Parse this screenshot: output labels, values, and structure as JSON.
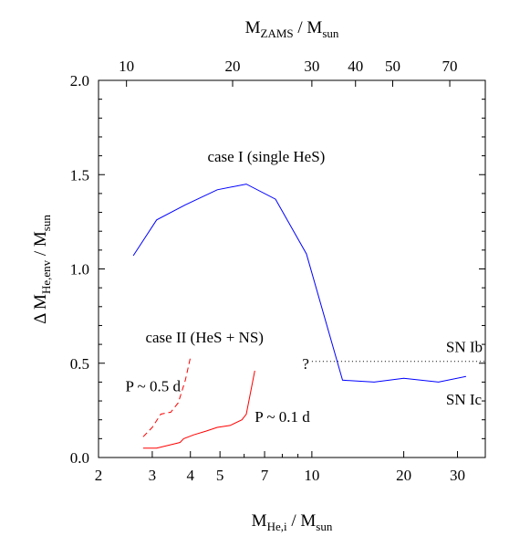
{
  "chart_data": {
    "type": "line",
    "x_scale": "log",
    "xlim": [
      2,
      37
    ],
    "ylim": [
      0,
      2.0
    ],
    "grid": false,
    "y_ticks": [
      {
        "value": 0.0,
        "label": "0.0"
      },
      {
        "value": 0.5,
        "label": "0.5"
      },
      {
        "value": 1.0,
        "label": "1.0"
      },
      {
        "value": 1.5,
        "label": "1.5"
      },
      {
        "value": 2.0,
        "label": "2.0"
      }
    ],
    "x_ticks_bottom": [
      {
        "value": 2,
        "label": "2"
      },
      {
        "value": 3,
        "label": "3"
      },
      {
        "value": 4,
        "label": "4"
      },
      {
        "value": 5,
        "label": "5"
      },
      {
        "value": 7,
        "label": "7"
      },
      {
        "value": 10,
        "label": "10"
      },
      {
        "value": 20,
        "label": "20"
      },
      {
        "value": 30,
        "label": "30"
      }
    ],
    "x_ticks_top": [
      {
        "value": 2.47,
        "label": "10"
      },
      {
        "value": 5.5,
        "label": "20"
      },
      {
        "value": 10.0,
        "label": "30"
      },
      {
        "value": 13.9,
        "label": "40"
      },
      {
        "value": 18.4,
        "label": "50"
      },
      {
        "value": 28.3,
        "label": "70"
      }
    ],
    "xlabel": {
      "main": "M",
      "sub": "He,i",
      "rest": " / M",
      "sub2": "sun"
    },
    "xlabel_top": {
      "main": "M",
      "sub": "ZAMS",
      "rest": " / M",
      "sub2": "sun"
    },
    "ylabel": {
      "main": "Δ M",
      "sub": "He,env",
      "rest": " / M",
      "sub2": "sun"
    },
    "series": [
      {
        "name": "case I (single HeS)",
        "color": "#0000ff",
        "dash": "solid",
        "points": [
          [
            2.6,
            1.07
          ],
          [
            3.1,
            1.26
          ],
          [
            3.85,
            1.34
          ],
          [
            4.9,
            1.42
          ],
          [
            6.1,
            1.45
          ],
          [
            7.6,
            1.37
          ],
          [
            9.6,
            1.08
          ],
          [
            12.6,
            0.41
          ],
          [
            16.0,
            0.4
          ],
          [
            20.0,
            0.42
          ],
          [
            26.0,
            0.4
          ],
          [
            32.0,
            0.43
          ]
        ]
      },
      {
        "name": "P ~ 0.1 d",
        "color": "#ff0000",
        "dash": "solid",
        "points": [
          [
            2.8,
            0.05
          ],
          [
            3.1,
            0.05
          ],
          [
            3.5,
            0.07
          ],
          [
            3.7,
            0.08
          ],
          [
            3.8,
            0.1
          ],
          [
            4.1,
            0.12
          ],
          [
            4.5,
            0.14
          ],
          [
            4.9,
            0.16
          ],
          [
            5.4,
            0.17
          ],
          [
            5.9,
            0.2
          ],
          [
            6.1,
            0.23
          ],
          [
            6.5,
            0.46
          ]
        ]
      },
      {
        "name": "P ~ 0.5 d",
        "color": "#ff0000",
        "dash": "dashed",
        "points": [
          [
            2.8,
            0.11
          ],
          [
            3.0,
            0.16
          ],
          [
            3.2,
            0.23
          ],
          [
            3.45,
            0.24
          ],
          [
            3.65,
            0.29
          ],
          [
            3.85,
            0.41
          ],
          [
            4.0,
            0.53
          ]
        ]
      },
      {
        "name": "",
        "color": "#000000",
        "dash": "dotted",
        "points": [
          [
            10.0,
            0.51
          ],
          [
            37.0,
            0.51
          ]
        ]
      }
    ],
    "annotations": [
      {
        "text": "case I (single HeS)",
        "color": "#0000ff",
        "at": [
          4.55,
          1.57
        ]
      },
      {
        "text": "case II (HeS + NS)",
        "color": "#ff0000",
        "at": [
          2.85,
          0.61
        ]
      },
      {
        "text": "P ~ 0.5 d",
        "color": "#ff0000",
        "at": [
          2.45,
          0.35
        ]
      },
      {
        "text": "P ~ 0.1 d",
        "color": "#ff0000",
        "at": [
          6.5,
          0.19
        ]
      },
      {
        "text": "?",
        "color": "#000000",
        "at": [
          9.3,
          0.47
        ]
      },
      {
        "text": "SN Ib",
        "color": "#000000",
        "at": [
          27.5,
          0.56
        ]
      },
      {
        "text": "SN Ic",
        "color": "#000000",
        "at": [
          27.5,
          0.28
        ]
      }
    ]
  }
}
